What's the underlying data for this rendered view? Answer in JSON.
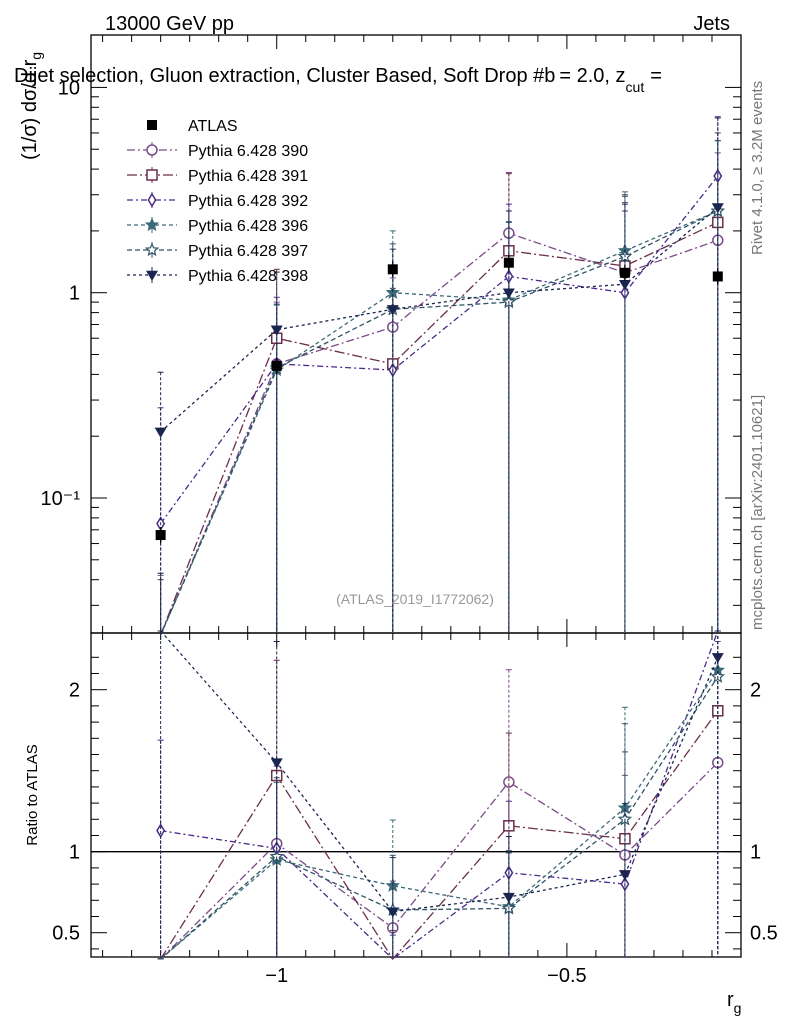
{
  "header": {
    "energy_label": "13000 GeV pp",
    "category_label": "Jets",
    "plot_title": "Dijet selection, Gluon extraction, Cluster Based, Soft Drop #b",
    "title_suffix": "= 2.0, z",
    "title_sub": "cut",
    "title_end": "="
  },
  "side_labels": {
    "rivet": "Rivet 4.1.0, ≥ 3.2M events",
    "mcplots": "mcplots.cern.ch [arXiv:2401.10621]"
  },
  "analysis_tag": "(ATLAS_2019_I1772062)",
  "axis_labels": {
    "main_y_prefix": "(1/σ) dσ/d r",
    "main_y_sub": "g",
    "ratio_y": "Ratio to ATLAS",
    "x_main": "r",
    "x_sub": "g"
  },
  "chart_data": {
    "type": "line",
    "x": [
      -1.2,
      -1.0,
      -0.8,
      -0.6,
      -0.4,
      -0.24
    ],
    "x_edges": [
      -1.32,
      -1.08,
      -0.88,
      -0.68,
      -0.48,
      -0.28,
      -0.2
    ],
    "xlim": [
      -1.32,
      -0.2
    ],
    "x_ticks": [
      -1.0,
      -0.5
    ],
    "x_tick_labels": [
      "−1",
      "−0.5"
    ],
    "main": {
      "scale": "log",
      "ylim": [
        0.022,
        18
      ],
      "y_ticks": [
        0.1,
        1,
        10
      ],
      "y_tick_labels": [
        "10⁻¹",
        "1",
        "10"
      ]
    },
    "ratio": {
      "ylim": [
        0.35,
        2.35
      ],
      "y_ticks": [
        0.5,
        1,
        2
      ],
      "y_tick_labels": [
        "0.5",
        "1",
        "2"
      ],
      "reference": 1
    },
    "data": {
      "name": "ATLAS",
      "values": [
        0.066,
        0.44,
        1.3,
        1.4,
        1.25,
        1.2
      ],
      "color": "#000000"
    },
    "series": [
      {
        "name": "Pythia 6.428 390",
        "marker": "circle-open",
        "dash": "8,3,2,3",
        "color": "#7b4b8a",
        "values": [
          0.012,
          0.45,
          0.68,
          1.95,
          1.25,
          1.8
        ],
        "err_up": [
          0.03,
          0.45,
          0.5,
          1.9,
          1.5,
          3.0
        ]
      },
      {
        "name": "Pythia 6.428 391",
        "marker": "square-open",
        "dash": "10,3,2,3",
        "color": "#6a2f4a",
        "values": [
          0.01,
          0.6,
          0.45,
          1.6,
          1.35,
          2.2
        ],
        "err_up": [
          0.03,
          0.7,
          0.6,
          2.2,
          1.6,
          3.8
        ]
      },
      {
        "name": "Pythia 6.428 392",
        "marker": "diamond-open",
        "dash": "6,3,2,3",
        "color": "#4b2a8a",
        "values": [
          0.075,
          0.45,
          0.42,
          1.2,
          1.0,
          3.7
        ],
        "err_up": [
          0.2,
          0.5,
          0.6,
          1.5,
          1.5,
          3.5
        ]
      },
      {
        "name": "Pythia 6.428 396",
        "marker": "star-filled",
        "dash": "4,3",
        "color": "#3d6a78",
        "values": [
          0.013,
          0.42,
          1.0,
          0.92,
          1.6,
          2.5
        ],
        "err_up": [
          0.03,
          0.45,
          1.0,
          1.3,
          1.5,
          3.0
        ]
      },
      {
        "name": "Pythia 6.428 397",
        "marker": "star-open",
        "dash": "5,3",
        "color": "#2f5466",
        "values": [
          0.013,
          0.43,
          0.83,
          0.9,
          1.5,
          2.5
        ],
        "err_up": [
          0.03,
          0.45,
          0.9,
          1.3,
          1.5,
          3.0
        ]
      },
      {
        "name": "Pythia 6.428 398",
        "marker": "triangle-down-filled",
        "dash": "3,3",
        "color": "#1a2550",
        "values": [
          0.21,
          0.66,
          0.83,
          1.0,
          1.1,
          2.6
        ],
        "err_up": [
          0.2,
          0.6,
          0.8,
          1.5,
          1.6,
          4.5
        ]
      }
    ],
    "ratios": [
      [
        0.17,
        1.05,
        0.53,
        1.43,
        0.98,
        1.55
      ],
      [
        0.15,
        1.47,
        0.32,
        1.16,
        1.08,
        1.87
      ],
      [
        1.13,
        1.02,
        0.3,
        0.87,
        0.8,
        3.0
      ],
      [
        0.2,
        0.95,
        0.79,
        0.66,
        1.27,
        2.12
      ],
      [
        0.2,
        0.97,
        0.64,
        0.65,
        1.2,
        2.08
      ],
      [
        3.2,
        1.55,
        0.63,
        0.72,
        0.86,
        2.2
      ]
    ]
  }
}
